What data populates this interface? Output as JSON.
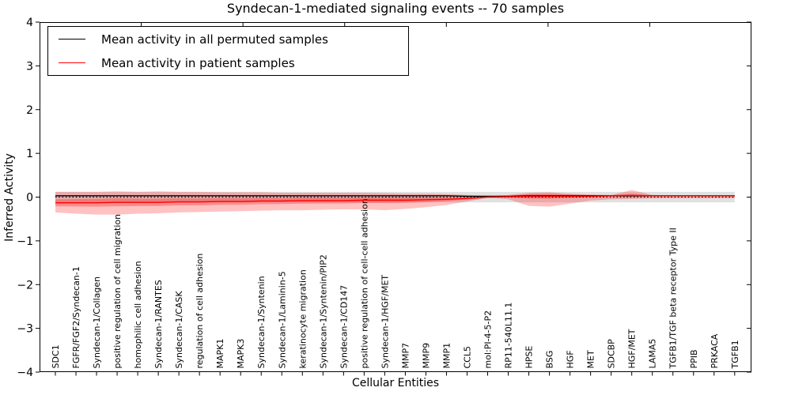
{
  "chart_data": {
    "type": "line",
    "title": "Syndecan-1-mediated signaling events -- 70 samples",
    "xlabel": "Cellular Entities",
    "ylabel": "Inferred Activity",
    "ylim": [
      -4,
      4
    ],
    "ytick_values": [
      4,
      3,
      2,
      1,
      0,
      -1,
      -2,
      -3,
      -4
    ],
    "ytick_labels": [
      "4",
      "3",
      "2",
      "1",
      "0",
      "−1",
      "−2",
      "−3",
      "−4"
    ],
    "grid": false,
    "legend_position": "upper left",
    "categories": [
      "SDC1",
      "FGFR/FGF2/Syndecan-1",
      "Syndecan-1/Collagen",
      "positive regulation of cell migration",
      "homophilic cell adhesion",
      "Syndecan-1/RANTES",
      "Syndecan-1/CASK",
      "regulation of cell adhesion",
      "MAPK1",
      "MAPK3",
      "Syndecan-1/Syntenin",
      "Syndecan-1/Laminin-5",
      "keratinocyte migration",
      "Syndecan-1/Syntenin/PIP2",
      "Syndecan-1/CD147",
      "positive regulation of cell-cell adhesion",
      "Syndecan-1/HGF/MET",
      "MMP7",
      "MMP9",
      "MMP1",
      "CCL5",
      "mol:PI-4-5-P2",
      "RP11-540L11.1",
      "HPSE",
      "BSG",
      "HGF",
      "MET",
      "SDCBP",
      "HGF/MET",
      "LAMA5",
      "TGFB1/TGF beta receptor Type II",
      "PPIB",
      "PRKACA",
      "TGFB1"
    ],
    "series": [
      {
        "name": "Mean activity in all permuted samples",
        "color": "#000000",
        "values": [
          0.03,
          0.03,
          0.03,
          0.03,
          0.03,
          0.03,
          0.03,
          0.03,
          0.03,
          0.03,
          0.03,
          0.03,
          0.03,
          0.03,
          0.03,
          0.03,
          0.03,
          0.03,
          0.03,
          0.03,
          0.02,
          0.02,
          0.02,
          0.03,
          0.03,
          0.03,
          0.03,
          0.03,
          0.03,
          0.03,
          0.03,
          0.03,
          0.03,
          0.03
        ]
      },
      {
        "name": "Mean activity in patient samples",
        "color": "#ff0000",
        "values": [
          -0.13,
          -0.13,
          -0.13,
          -0.12,
          -0.12,
          -0.12,
          -0.11,
          -0.11,
          -0.1,
          -0.1,
          -0.09,
          -0.09,
          -0.08,
          -0.08,
          -0.08,
          -0.07,
          -0.07,
          -0.07,
          -0.06,
          -0.05,
          -0.03,
          0.0,
          0.01,
          0.02,
          0.02,
          0.02,
          0.02,
          0.03,
          0.04,
          0.03,
          0.03,
          0.03,
          0.03,
          0.03
        ]
      }
    ],
    "patient_band": {
      "color": "#ff0000",
      "opacity": 0.24,
      "lo": [
        -0.35,
        -0.38,
        -0.4,
        -0.4,
        -0.38,
        -0.37,
        -0.35,
        -0.34,
        -0.33,
        -0.32,
        -0.31,
        -0.3,
        -0.3,
        -0.29,
        -0.28,
        -0.28,
        -0.3,
        -0.27,
        -0.23,
        -0.18,
        -0.1,
        -0.015,
        -0.05,
        -0.2,
        -0.22,
        -0.15,
        -0.08,
        -0.05,
        -0.04,
        -0.03,
        -0.025,
        -0.025,
        -0.025,
        -0.025
      ],
      "hi": [
        0.12,
        0.12,
        0.12,
        0.13,
        0.12,
        0.13,
        0.12,
        0.12,
        0.11,
        0.11,
        0.11,
        0.1,
        0.1,
        0.1,
        0.1,
        0.1,
        0.09,
        0.08,
        0.08,
        0.07,
        0.05,
        0.02,
        0.05,
        0.1,
        0.11,
        0.08,
        0.06,
        0.05,
        0.16,
        0.05,
        0.04,
        0.04,
        0.04,
        0.04
      ]
    },
    "permuted_band": {
      "color": "#777777",
      "opacity": 0.22,
      "lo": -0.12,
      "hi": 0.12
    },
    "zero_line": {
      "value": 0,
      "style": "dotted",
      "color": "#000000"
    }
  }
}
